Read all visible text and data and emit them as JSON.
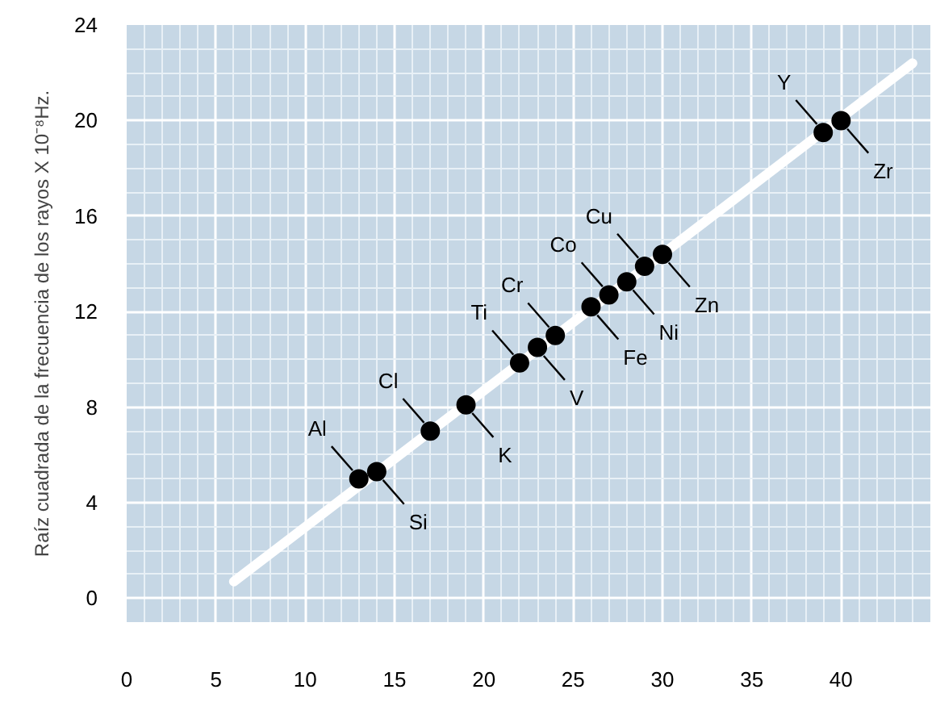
{
  "chart_data": {
    "type": "scatter",
    "ylabel": "Raíz cuadrada de la frecuencia de los rayos X 10⁻⁸Hz.",
    "xlim": [
      0,
      45
    ],
    "ylim": [
      -1,
      24
    ],
    "xticks": [
      0,
      5,
      10,
      15,
      20,
      25,
      30,
      35,
      40
    ],
    "yticks": [
      0,
      4,
      8,
      12,
      16,
      20,
      24
    ],
    "grid": true,
    "marker": "circle",
    "series": [
      {
        "type": "line",
        "marker": "none",
        "color": "#ffffff",
        "x": [
          6,
          44
        ],
        "values": [
          0.7,
          22.4
        ]
      },
      {
        "color": "#000000",
        "x": [
          13,
          14,
          17,
          19,
          22,
          23,
          24,
          26,
          27,
          28,
          29,
          30,
          39,
          40
        ],
        "values": [
          5.0,
          5.3,
          7.0,
          8.1,
          9.85,
          10.5,
          11.0,
          12.2,
          12.7,
          13.25,
          13.9,
          14.4,
          19.5,
          20.0
        ]
      }
    ],
    "annotations": [
      {
        "text": "Al",
        "x": 13,
        "y": 5.0
      },
      {
        "text": "Si",
        "x": 14,
        "y": 5.3
      },
      {
        "text": "Cl",
        "x": 17,
        "y": 7.0
      },
      {
        "text": "K",
        "x": 19,
        "y": 8.1
      },
      {
        "text": "Ti",
        "x": 22,
        "y": 9.85
      },
      {
        "text": "V",
        "x": 23,
        "y": 10.5
      },
      {
        "text": "Cr",
        "x": 24,
        "y": 11.0
      },
      {
        "text": "Fe",
        "x": 26,
        "y": 12.2
      },
      {
        "text": "Co",
        "x": 27,
        "y": 12.7
      },
      {
        "text": "Ni",
        "x": 28,
        "y": 13.25
      },
      {
        "text": "Cu",
        "x": 29,
        "y": 13.9
      },
      {
        "text": "Zn",
        "x": 30,
        "y": 14.4
      },
      {
        "text": "Y",
        "x": 39,
        "y": 19.5
      },
      {
        "text": "Zr",
        "x": 40,
        "y": 20.0
      }
    ]
  }
}
